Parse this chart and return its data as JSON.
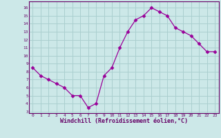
{
  "x": [
    0,
    1,
    2,
    3,
    4,
    5,
    6,
    7,
    8,
    9,
    10,
    11,
    12,
    13,
    14,
    15,
    16,
    17,
    18,
    19,
    20,
    21,
    22,
    23
  ],
  "y": [
    8.5,
    7.5,
    7.0,
    6.5,
    6.0,
    5.0,
    5.0,
    3.5,
    4.0,
    7.5,
    8.5,
    11.0,
    13.0,
    14.5,
    15.0,
    16.0,
    15.5,
    15.0,
    13.5,
    13.0,
    12.5,
    11.5,
    10.5,
    10.5
  ],
  "line_color": "#990099",
  "marker": "D",
  "marker_size": 2.5,
  "bg_color": "#cce8e8",
  "grid_color": "#aacfcf",
  "xlabel": "Windchill (Refroidissement éolien,°C)",
  "ylabel_ticks": [
    3,
    4,
    5,
    6,
    7,
    8,
    9,
    10,
    11,
    12,
    13,
    14,
    15,
    16
  ],
  "ylim": [
    2.8,
    16.8
  ],
  "xlim": [
    -0.5,
    23.5
  ],
  "xlabel_color": "#660066",
  "tick_color": "#660066",
  "spine_color": "#660066",
  "xtick_labels": [
    "0",
    "1",
    "2",
    "3",
    "4",
    "5",
    "6",
    "7",
    "8",
    "9",
    "1011",
    "1213",
    "1415",
    "1617",
    "1819",
    "2021",
    "2223"
  ]
}
